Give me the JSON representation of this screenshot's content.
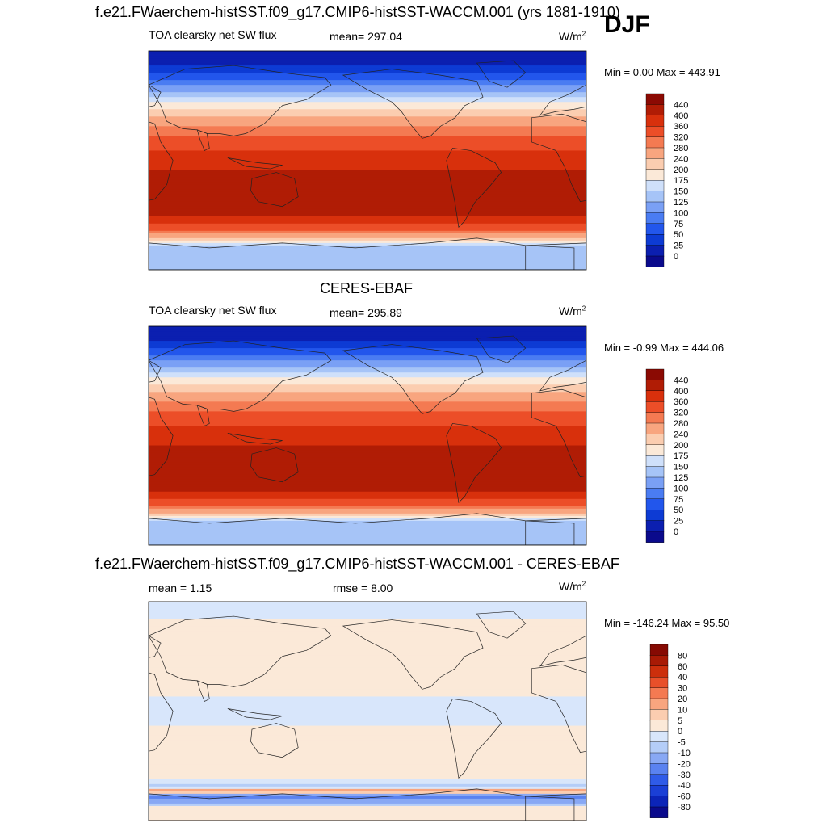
{
  "season": "DJF",
  "colors": {
    "main_scale": [
      "#0a0a8c",
      "#0b1fb0",
      "#0d3bd4",
      "#2256ec",
      "#4a7cf2",
      "#7aa0f5",
      "#a6c4f7",
      "#cfe0fa",
      "#fbe9d8",
      "#fbcdb0",
      "#f8a57f",
      "#f47a52",
      "#ec4e28",
      "#d8300c",
      "#b01c05",
      "#8b0a03"
    ],
    "diff_scale": [
      "#0a0a8c",
      "#0b24b8",
      "#1a3fd6",
      "#2f5be8",
      "#5a82f0",
      "#88a8f4",
      "#b4cdf8",
      "#d8e6fb",
      "#fbe9d8",
      "#fbcdb0",
      "#f8a57f",
      "#f47a52",
      "#e8502a",
      "#cc2f0c",
      "#a81a05",
      "#860a03"
    ],
    "land_outline": "#222222"
  },
  "chart_data": [
    {
      "type": "heatmap",
      "id": "model",
      "title": "f.e21.FWaerchem-histSST.f09_g17.CMIP6-histSST-WACCM.001 (yrs 1881-1910)",
      "variable": "TOA clearsky net SW flux",
      "mean_text": "mean= 297.04",
      "units_text": "W/m",
      "units_sup": "2",
      "minmax_text": "Min =   0.00 Max = 443.91",
      "colorbar_labels": [
        "440",
        "400",
        "360",
        "320",
        "280",
        "240",
        "200",
        "175",
        "150",
        "125",
        "100",
        "75",
        "50",
        "25",
        "0"
      ],
      "lat_profile": [
        [
          90,
          5
        ],
        [
          75,
          30
        ],
        [
          62,
          95
        ],
        [
          52,
          150
        ],
        [
          40,
          215
        ],
        [
          28,
          285
        ],
        [
          15,
          340
        ],
        [
          0,
          385
        ],
        [
          -15,
          410
        ],
        [
          -25,
          435
        ],
        [
          -35,
          430
        ],
        [
          -45,
          405
        ],
        [
          -55,
          345
        ],
        [
          -62,
          260
        ],
        [
          -70,
          150
        ],
        [
          -90,
          140
        ]
      ]
    },
    {
      "type": "heatmap",
      "id": "obs",
      "title": "CERES-EBAF",
      "variable": "TOA clearsky net SW flux",
      "mean_text": "mean= 295.89",
      "units_text": "W/m",
      "units_sup": "2",
      "minmax_text": "Min =  -0.99 Max = 444.06",
      "colorbar_labels": [
        "440",
        "400",
        "360",
        "320",
        "280",
        "240",
        "200",
        "175",
        "150",
        "125",
        "100",
        "75",
        "50",
        "25",
        "0"
      ],
      "lat_profile": [
        [
          90,
          5
        ],
        [
          75,
          30
        ],
        [
          62,
          95
        ],
        [
          52,
          150
        ],
        [
          40,
          215
        ],
        [
          28,
          285
        ],
        [
          15,
          340
        ],
        [
          0,
          385
        ],
        [
          -15,
          410
        ],
        [
          -25,
          435
        ],
        [
          -35,
          430
        ],
        [
          -45,
          405
        ],
        [
          -55,
          345
        ],
        [
          -62,
          260
        ],
        [
          -70,
          150
        ],
        [
          -90,
          140
        ]
      ]
    },
    {
      "type": "heatmap",
      "id": "diff",
      "title": "f.e21.FWaerchem-histSST.f09_g17.CMIP6-histSST-WACCM.001 - CERES-EBAF",
      "mean_text": "mean =   1.15",
      "rmse_text": "rmse =   8.00",
      "units_text": "W/m",
      "units_sup": "2",
      "minmax_text": "Min = -146.24 Max =  95.50",
      "colorbar_labels": [
        "80",
        "60",
        "40",
        "30",
        "20",
        "10",
        "5",
        "0",
        "-5",
        "-10",
        "-20",
        "-30",
        "-40",
        "-60",
        "-80"
      ],
      "lat_profile": [
        [
          90,
          -2
        ],
        [
          60,
          2
        ],
        [
          30,
          3
        ],
        [
          0,
          -2
        ],
        [
          -30,
          3
        ],
        [
          -55,
          2
        ],
        [
          -62,
          -10
        ],
        [
          -66,
          20
        ],
        [
          -70,
          -25
        ],
        [
          -80,
          3
        ],
        [
          -90,
          3
        ]
      ]
    }
  ]
}
